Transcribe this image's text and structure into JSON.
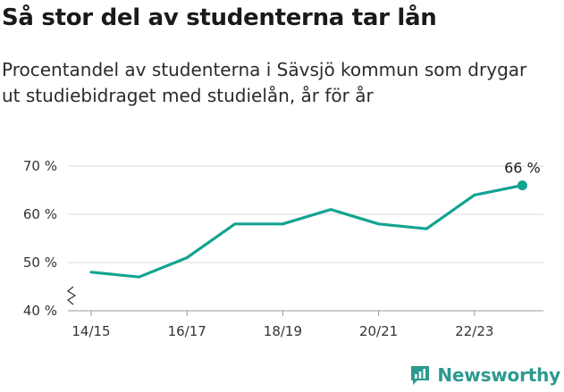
{
  "header": {
    "title": "Så stor del av studenterna tar lån",
    "subtitle": "Procentandel av studenterna i Sävsjö kommun som drygar ut studiebidraget med studielån, år för år"
  },
  "brand": {
    "name": "Newsworthy",
    "color": "#2b9a8f"
  },
  "chart_data": {
    "type": "line",
    "title": "Så stor del av studenterna tar lån",
    "subtitle": "Procentandel av studenterna i Sävsjö kommun som drygar ut studiebidraget med studielån, år för år",
    "xlabel": "",
    "ylabel": "",
    "x": [
      "14/15",
      "15/16",
      "16/17",
      "17/18",
      "18/19",
      "19/20",
      "20/21",
      "21/22",
      "22/23",
      "23/24"
    ],
    "x_tick_labels": [
      "14/15",
      "16/17",
      "18/19",
      "20/21",
      "22/23"
    ],
    "y_ticks": [
      40,
      50,
      60,
      70
    ],
    "y_tick_labels": [
      "40 %",
      "50 %",
      "60 %",
      "70 %"
    ],
    "ylim": [
      40,
      70
    ],
    "y_axis_break": true,
    "grid": true,
    "series": [
      {
        "values": [
          48,
          47,
          51,
          58,
          58,
          61,
          58,
          57,
          64,
          66
        ],
        "color": "#12a391"
      }
    ],
    "annotations": [
      {
        "x": "23/24",
        "y": 66,
        "text": "66 %"
      }
    ]
  }
}
